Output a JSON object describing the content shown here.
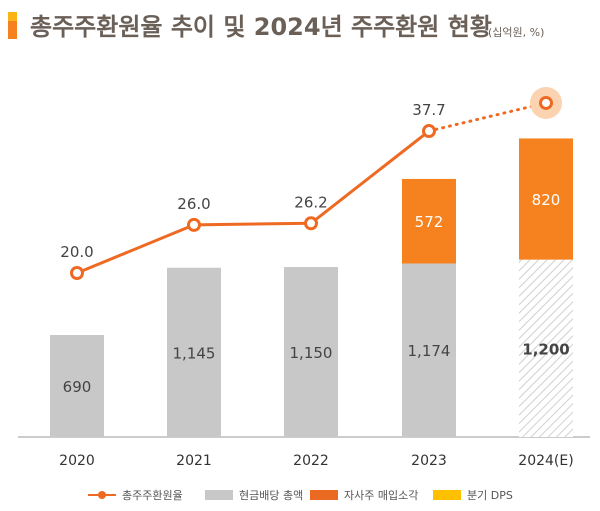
{
  "chart_data": {
    "type": "bar+line",
    "title": "총주주환원율 추이 및 2024년 주주환원 현황",
    "unit": "(십억원, %)",
    "categories": [
      "2020",
      "2021",
      "2022",
      "2023",
      "2024(E)"
    ],
    "series": [
      {
        "name": "현금배당 총액",
        "type": "stacked-bar",
        "color": "#c8c8c8",
        "values": [
          690,
          1145,
          1150,
          1174,
          1200
        ],
        "labels": [
          "690",
          "1,145",
          "1,150",
          "1,174",
          "1,200"
        ],
        "estimate_hatched": [
          false,
          false,
          false,
          false,
          true
        ]
      },
      {
        "name": "자사주 매입소각",
        "type": "stacked-bar",
        "color": "#f5821f",
        "values": [
          null,
          null,
          null,
          572,
          820
        ],
        "labels": [
          "",
          "",
          "",
          "572",
          "820"
        ]
      },
      {
        "name": "총주주환원율",
        "type": "line",
        "color": "#ee6a22",
        "values": [
          20.0,
          26.0,
          26.2,
          37.7,
          41.2
        ],
        "labels": [
          "20.0",
          "26.0",
          "26.2",
          "37.7",
          ""
        ],
        "dotted_last_segment": true
      },
      {
        "name": "분기 DPS",
        "type": "legend-only",
        "color": "#ffc000"
      }
    ],
    "legend_position": "bottom",
    "grid": false
  }
}
